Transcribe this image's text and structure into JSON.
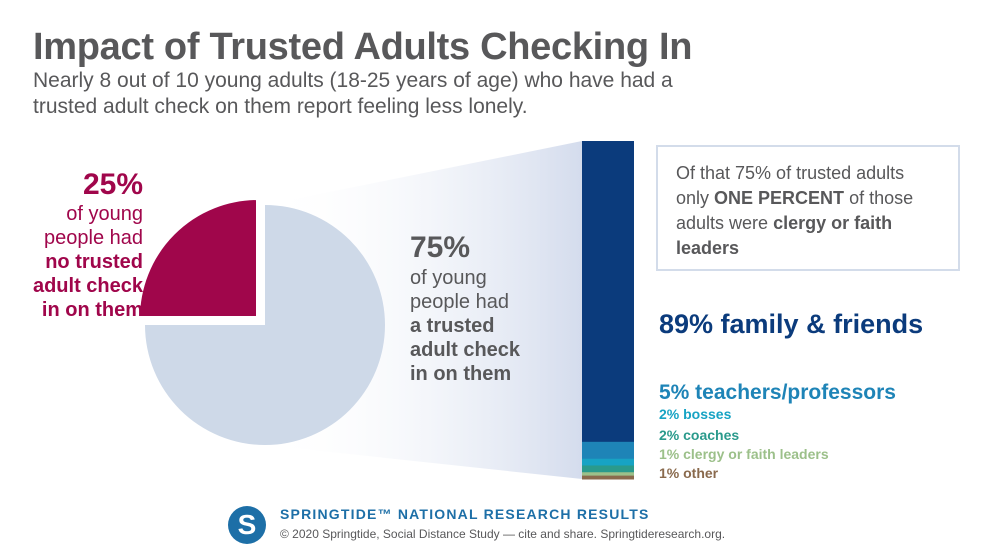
{
  "header": {
    "title": "Impact of Trusted Adults Checking In",
    "subtitle": "Nearly 8 out of 10 young adults (18-25 years of age) who have had a trusted adult check on them report feeling less lonely."
  },
  "left_label": {
    "pct": "25%",
    "line1": "of young",
    "line2": "people had",
    "bold1": "no trusted",
    "bold2": "adult check",
    "bold3": "in on them"
  },
  "mid_label": {
    "pct": "75%",
    "line1": "of young",
    "line2": "people had",
    "bold1": "a trusted",
    "bold2": "adult check",
    "bold3": "in on them"
  },
  "callout": {
    "text1": "Of that 75% of trusted adults only ",
    "bold1": "ONE PERCENT",
    "text2": " of those adults were ",
    "bold2": "clergy or faith leaders"
  },
  "legend": {
    "family": "89% family & friends",
    "teachers": "5% teachers/professors",
    "bosses": "2% bosses",
    "coaches": "2% coaches",
    "clergy": "1% clergy or faith leaders",
    "other": "1% other"
  },
  "footer": {
    "logo_letter": "S",
    "title": "SPRINGTIDE™ NATIONAL RESEARCH RESULTS",
    "credit": "© 2020 Springtide, Social Distance Study — cite and share. Springtideresearch.org."
  },
  "colors": {
    "pie_main": "#ced9e8",
    "pie_highlight": "#a0064b",
    "family": "#0b3b7c",
    "teachers": "#1e84b7",
    "bosses": "#17a3c4",
    "coaches": "#2a9a8c",
    "clergy": "#9cc08a",
    "other": "#8a6a4d"
  },
  "chart_data": [
    {
      "type": "pie",
      "categories": [
        "no trusted adult check in on them",
        "a trusted adult check in on them"
      ],
      "values": [
        25,
        75
      ],
      "unit": "%"
    },
    {
      "type": "bar",
      "stacked": true,
      "categories": [
        "family & friends",
        "teachers/professors",
        "bosses",
        "coaches",
        "clergy or faith leaders",
        "other"
      ],
      "values": [
        89,
        5,
        2,
        2,
        1,
        1
      ],
      "unit": "%"
    }
  ]
}
